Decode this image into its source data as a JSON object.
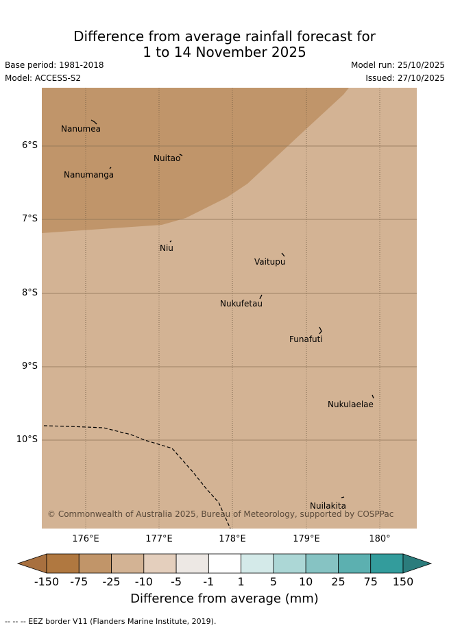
{
  "title": {
    "line1": "Difference from average rainfall forecast for",
    "line2": "1 to 14 November 2025"
  },
  "info": {
    "base_period": "Base period: 1981-2018",
    "model": "Model: ACCESS-S2",
    "model_run": "Model run: 25/10/2025",
    "issued": "Issued: 27/10/2025"
  },
  "map": {
    "lat_labels": [
      "6°S",
      "7°S",
      "8°S",
      "9°S",
      "10°S"
    ],
    "lon_labels": [
      "176°E",
      "177°E",
      "178°E",
      "179°E",
      "180°"
    ],
    "fill_colors": {
      "wetter_minus_10": "#c0956a",
      "minus_25": "#d3b394"
    },
    "islands": [
      "Nanumea",
      "Nuitao",
      "Nanumanga",
      "Niu",
      "Vaitupu",
      "Nukufetau",
      "Funafuti",
      "Nukulaelae",
      "Nuilakita"
    ],
    "copyright": "© Commonwealth of Australia 2025, Bureau of Meteorology, supported by COSPPac"
  },
  "colorbar": {
    "labels": [
      "-150",
      "-75",
      "-25",
      "-10",
      "-5",
      "-1",
      "1",
      "5",
      "10",
      "25",
      "75",
      "150"
    ],
    "colors": [
      "#a8703f",
      "#b07840",
      "#c19569",
      "#d3b394",
      "#e4cfbd",
      "#ede8e4",
      "#ffffff",
      "#d4eae9",
      "#acd7d6",
      "#86c3c3",
      "#5cb0b0",
      "#339c9c",
      "#2b7c7c"
    ],
    "title": "Difference from average (mm)"
  },
  "footnote": "--  --  -- EEZ border V11 (Flanders Marine Institute, 2019)."
}
